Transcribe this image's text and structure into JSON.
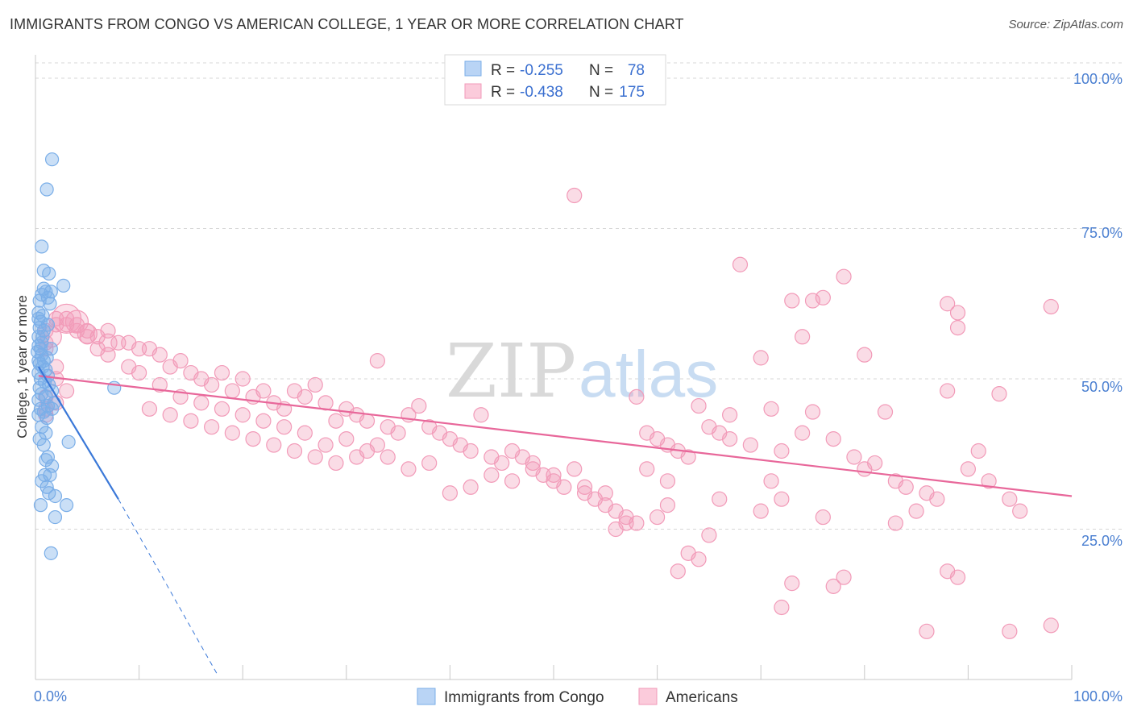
{
  "title": "IMMIGRANTS FROM CONGO VS AMERICAN COLLEGE, 1 YEAR OR MORE CORRELATION CHART",
  "source": "Source: ZipAtlas.com",
  "colors": {
    "blue": "#7aaee8",
    "blue_line": "#3a78d8",
    "pink": "#f29ab8",
    "pink_line": "#e8679a",
    "grid": "#d7d7d7",
    "tick_text": "#4a7fd1"
  },
  "legend": {
    "rows": [
      {
        "r_label": "R =",
        "r_value": "-0.255",
        "n_label": "N =",
        "n_value": "78"
      },
      {
        "r_label": "R =",
        "r_value": "-0.438",
        "n_label": "N =",
        "n_value": "175"
      }
    ]
  },
  "watermark": {
    "part1": "ZIP",
    "part2": "atlas"
  },
  "chart_data": {
    "type": "scatter",
    "xlabel": "",
    "ylabel": "College, 1 year or more",
    "x_tick_labels": [
      "0.0%",
      "100.0%"
    ],
    "y_tick_labels": [
      "100.0%",
      "75.0%",
      "50.0%",
      "25.0%"
    ],
    "xlim": [
      0,
      100
    ],
    "ylim": [
      0,
      100
    ],
    "grid": true,
    "legend_position": "top-center",
    "series": [
      {
        "name": "Immigrants from Congo",
        "color": "blue",
        "trend": {
          "x0": 0.3,
          "y0": 52.0,
          "x1": 8.0,
          "y1": 30.0,
          "dashed_to_x": 17.5,
          "dashed_to_y": 1.0
        },
        "points": [
          [
            1.6,
            86.5
          ],
          [
            1.1,
            81.5
          ],
          [
            0.6,
            72
          ],
          [
            0.8,
            68
          ],
          [
            1.3,
            67.5
          ],
          [
            2.7,
            65.5
          ],
          [
            0.8,
            65
          ],
          [
            1.0,
            64.5
          ],
          [
            1.5,
            64.5
          ],
          [
            0.6,
            64
          ],
          [
            1.2,
            63.5
          ],
          [
            0.4,
            63
          ],
          [
            1.4,
            62.5
          ],
          [
            0.3,
            61
          ],
          [
            0.7,
            60.5
          ],
          [
            0.3,
            60
          ],
          [
            0.5,
            59.5
          ],
          [
            1.2,
            59
          ],
          [
            0.4,
            58.5
          ],
          [
            0.8,
            58
          ],
          [
            0.3,
            57
          ],
          [
            0.6,
            56
          ],
          [
            0.3,
            55.5
          ],
          [
            1.5,
            55
          ],
          [
            0.2,
            54.5
          ],
          [
            0.6,
            54
          ],
          [
            1.1,
            53.5
          ],
          [
            0.3,
            53
          ],
          [
            0.8,
            53
          ],
          [
            0.4,
            52.5
          ],
          [
            0.7,
            52
          ],
          [
            1.0,
            51.5
          ],
          [
            0.3,
            51
          ],
          [
            1.2,
            50.5
          ],
          [
            0.5,
            50
          ],
          [
            0.9,
            49.5
          ],
          [
            1.3,
            49
          ],
          [
            0.4,
            48.5
          ],
          [
            7.6,
            48.5
          ],
          [
            1.6,
            48
          ],
          [
            0.6,
            47.5
          ],
          [
            1.0,
            47
          ],
          [
            0.3,
            46.5
          ],
          [
            1.8,
            46
          ],
          [
            1.2,
            45.5
          ],
          [
            0.5,
            45
          ],
          [
            1.6,
            45
          ],
          [
            0.8,
            44.5
          ],
          [
            0.3,
            44
          ],
          [
            1.1,
            43.5
          ],
          [
            0.6,
            42
          ],
          [
            1.0,
            41
          ],
          [
            0.4,
            40
          ],
          [
            3.2,
            39.5
          ],
          [
            0.8,
            39
          ],
          [
            1.2,
            37
          ],
          [
            1.0,
            36.5
          ],
          [
            1.6,
            35.5
          ],
          [
            0.9,
            34
          ],
          [
            1.4,
            34
          ],
          [
            0.6,
            33
          ],
          [
            1.1,
            32
          ],
          [
            1.3,
            31
          ],
          [
            1.9,
            30.5
          ],
          [
            3.0,
            29
          ],
          [
            0.5,
            29
          ],
          [
            1.9,
            27
          ],
          [
            1.5,
            21
          ],
          [
            0.7,
            57
          ],
          [
            0.5,
            55
          ]
        ]
      },
      {
        "name": "Americans",
        "color": "pink",
        "trend": {
          "x0": 0.3,
          "y0": 50.5,
          "x1": 100,
          "y1": 30.5
        },
        "points": [
          [
            52,
            80.5
          ],
          [
            68,
            69
          ],
          [
            78,
            67
          ],
          [
            76,
            63.5
          ],
          [
            75,
            63
          ],
          [
            73,
            63
          ],
          [
            98,
            62
          ],
          [
            88,
            62.5
          ],
          [
            89,
            61
          ],
          [
            89,
            58.5
          ],
          [
            74,
            57
          ],
          [
            80,
            54
          ],
          [
            70,
            53.5
          ],
          [
            33,
            53
          ],
          [
            88,
            48
          ],
          [
            93,
            47.5
          ],
          [
            58,
            47
          ],
          [
            64,
            45.5
          ],
          [
            71,
            45
          ],
          [
            75,
            44.5
          ],
          [
            82,
            44.5
          ],
          [
            43,
            44
          ],
          [
            37,
            45.5
          ],
          [
            36,
            44
          ],
          [
            29,
            43
          ],
          [
            27,
            49
          ],
          [
            20,
            50
          ],
          [
            22,
            48
          ],
          [
            18,
            51
          ],
          [
            14,
            53
          ],
          [
            10,
            55
          ],
          [
            8,
            56
          ],
          [
            6,
            57
          ],
          [
            5,
            58
          ],
          [
            3,
            60
          ],
          [
            2,
            59
          ],
          [
            4,
            59
          ],
          [
            7,
            58
          ],
          [
            9,
            56
          ],
          [
            11,
            55
          ],
          [
            12,
            54
          ],
          [
            13,
            52
          ],
          [
            15,
            51
          ],
          [
            16,
            50
          ],
          [
            17,
            49
          ],
          [
            19,
            48
          ],
          [
            21,
            47
          ],
          [
            23,
            46
          ],
          [
            24,
            45
          ],
          [
            25,
            48
          ],
          [
            26,
            47
          ],
          [
            28,
            46
          ],
          [
            30,
            45
          ],
          [
            31,
            44
          ],
          [
            32,
            43
          ],
          [
            34,
            42
          ],
          [
            35,
            41
          ],
          [
            38,
            42
          ],
          [
            39,
            41
          ],
          [
            40,
            40
          ],
          [
            41,
            39
          ],
          [
            42,
            38
          ],
          [
            44,
            37
          ],
          [
            45,
            36
          ],
          [
            46,
            38
          ],
          [
            47,
            37
          ],
          [
            48,
            35
          ],
          [
            49,
            34
          ],
          [
            50,
            33
          ],
          [
            51,
            32
          ],
          [
            53,
            31
          ],
          [
            54,
            30
          ],
          [
            55,
            29
          ],
          [
            56,
            28
          ],
          [
            57,
            27
          ],
          [
            59,
            41
          ],
          [
            60,
            40
          ],
          [
            61,
            39
          ],
          [
            62,
            38
          ],
          [
            63,
            37
          ],
          [
            65,
            42
          ],
          [
            66,
            41
          ],
          [
            67,
            40
          ],
          [
            69,
            39
          ],
          [
            72,
            38
          ],
          [
            74,
            41
          ],
          [
            77,
            40
          ],
          [
            79,
            37
          ],
          [
            81,
            36
          ],
          [
            83,
            33
          ],
          [
            84,
            32
          ],
          [
            86,
            31
          ],
          [
            87,
            30
          ],
          [
            90,
            35
          ],
          [
            91,
            38
          ],
          [
            92,
            33
          ],
          [
            94,
            30
          ],
          [
            95,
            28
          ],
          [
            85,
            28
          ],
          [
            83,
            26
          ],
          [
            76,
            27
          ],
          [
            77,
            15.5
          ],
          [
            72,
            30
          ],
          [
            71,
            33
          ],
          [
            70,
            28
          ],
          [
            66,
            30
          ],
          [
            65,
            24
          ],
          [
            61,
            29
          ],
          [
            60,
            27
          ],
          [
            58,
            26
          ],
          [
            56,
            25
          ],
          [
            55,
            31
          ],
          [
            53,
            32
          ],
          [
            52,
            35
          ],
          [
            50,
            34
          ],
          [
            48,
            36
          ],
          [
            46,
            33
          ],
          [
            44,
            34
          ],
          [
            42,
            32
          ],
          [
            40,
            31
          ],
          [
            38,
            36
          ],
          [
            36,
            35
          ],
          [
            34,
            37
          ],
          [
            32,
            38
          ],
          [
            30,
            40
          ],
          [
            28,
            39
          ],
          [
            26,
            41
          ],
          [
            24,
            42
          ],
          [
            22,
            43
          ],
          [
            20,
            44
          ],
          [
            18,
            45
          ],
          [
            16,
            46
          ],
          [
            14,
            47
          ],
          [
            12,
            49
          ],
          [
            10,
            51
          ],
          [
            9,
            52
          ],
          [
            7,
            54
          ],
          [
            6,
            55
          ],
          [
            5,
            57
          ],
          [
            4,
            58
          ],
          [
            3,
            59
          ],
          [
            2,
            60
          ],
          [
            1,
            58
          ],
          [
            1,
            56
          ],
          [
            1,
            55
          ],
          [
            2,
            52
          ],
          [
            2,
            50
          ],
          [
            3,
            48
          ],
          [
            1,
            47
          ],
          [
            2,
            46
          ],
          [
            1,
            45
          ],
          [
            1,
            44
          ],
          [
            33,
            39
          ],
          [
            31,
            37
          ],
          [
            29,
            36
          ],
          [
            27,
            37
          ],
          [
            25,
            38
          ],
          [
            23,
            39
          ],
          [
            21,
            40
          ],
          [
            19,
            41
          ],
          [
            17,
            42
          ],
          [
            15,
            43
          ],
          [
            13,
            44
          ],
          [
            11,
            45
          ],
          [
            63,
            21
          ],
          [
            64,
            20
          ],
          [
            62,
            18
          ],
          [
            72,
            12
          ],
          [
            73,
            16
          ],
          [
            78,
            17
          ],
          [
            88,
            18
          ],
          [
            89,
            17
          ],
          [
            86,
            8
          ],
          [
            94,
            8
          ],
          [
            98,
            9
          ],
          [
            57,
            26
          ],
          [
            59,
            35
          ],
          [
            61,
            33
          ],
          [
            67,
            44
          ],
          [
            80,
            35
          ]
        ]
      }
    ]
  }
}
